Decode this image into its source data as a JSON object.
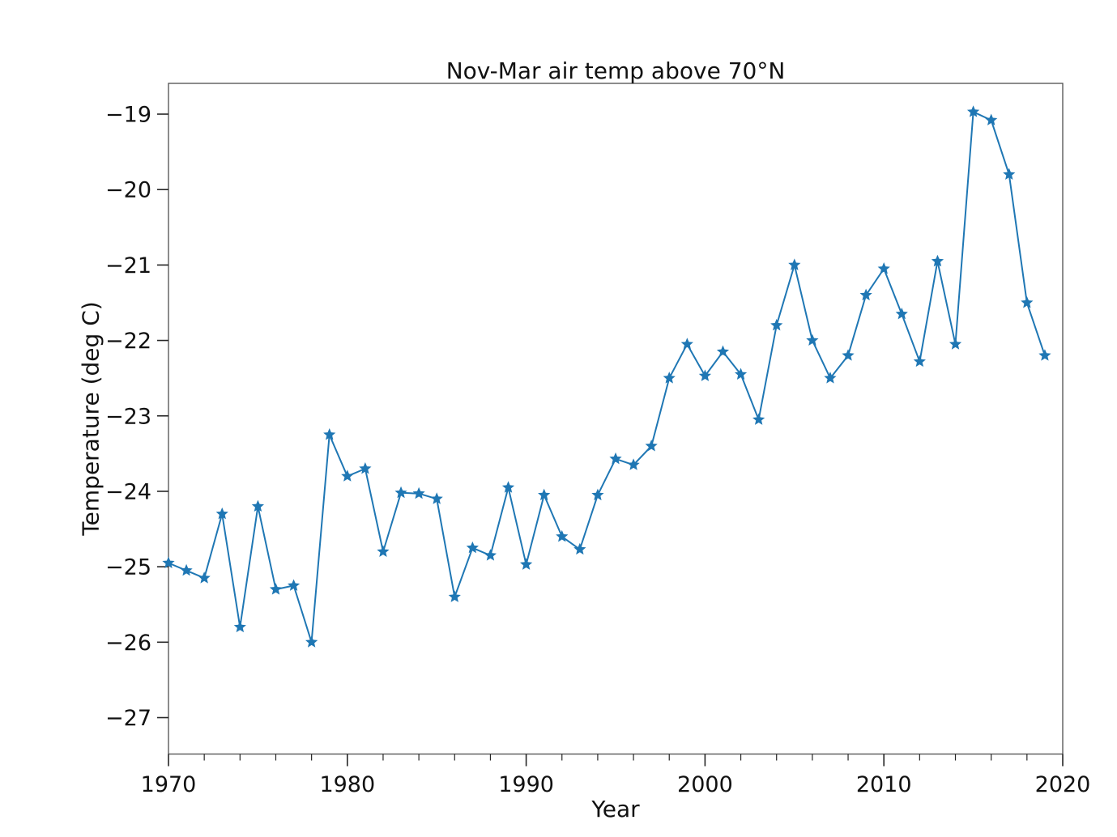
{
  "figure": {
    "background": "#ffffff",
    "frame_color": "#4d4d4d",
    "tick_color": "#262626",
    "text_color": "#111111"
  },
  "chart_data": {
    "type": "line",
    "title": "Nov-Mar air temp above 70°N",
    "xlabel": "Year",
    "ylabel": "Temperature (deg C)",
    "line_color": "#1f77b4",
    "marker": "star",
    "grid": false,
    "legend": null,
    "xlim": [
      1970,
      2020
    ],
    "ylim": [
      -27.5,
      -18.6
    ],
    "xticks": [
      1970,
      1980,
      1990,
      2000,
      2010,
      2020
    ],
    "xtick_minor_step": 2,
    "yticks": [
      -19,
      -20,
      -21,
      -22,
      -23,
      -24,
      -25,
      -26,
      -27
    ],
    "x": [
      1970,
      1971,
      1972,
      1973,
      1974,
      1975,
      1976,
      1977,
      1978,
      1979,
      1980,
      1981,
      1982,
      1983,
      1984,
      1985,
      1986,
      1987,
      1988,
      1989,
      1990,
      1991,
      1992,
      1993,
      1994,
      1995,
      1996,
      1997,
      1998,
      1999,
      2000,
      2001,
      2002,
      2003,
      2004,
      2005,
      2006,
      2007,
      2008,
      2009,
      2010,
      2011,
      2012,
      2013,
      2014,
      2015,
      2016,
      2017,
      2018,
      2019
    ],
    "values": [
      -24.95,
      -25.05,
      -25.15,
      -24.3,
      -25.8,
      -24.2,
      -25.3,
      -25.25,
      -26.0,
      -23.25,
      -23.8,
      -23.7,
      -24.8,
      -24.02,
      -24.03,
      -24.1,
      -25.4,
      -24.75,
      -24.85,
      -23.95,
      -24.97,
      -24.05,
      -24.6,
      -24.77,
      -24.05,
      -23.57,
      -23.65,
      -23.4,
      -22.5,
      -22.05,
      -22.47,
      -22.15,
      -22.45,
      -23.05,
      -21.8,
      -21.0,
      -22.0,
      -22.5,
      -22.2,
      -21.4,
      -21.05,
      -21.65,
      -22.28,
      -20.95,
      -22.05,
      -18.97,
      -19.08,
      -19.8,
      -21.5,
      -22.2
    ]
  }
}
